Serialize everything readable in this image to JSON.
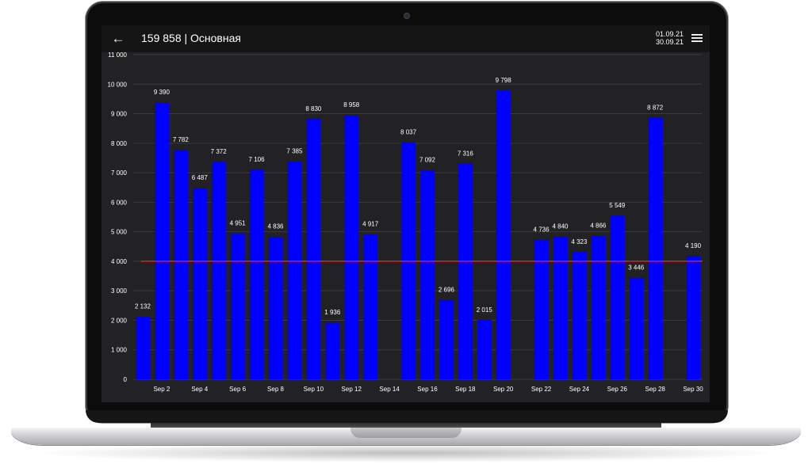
{
  "app": {
    "title": "159 858 | Основная",
    "date_from": "01.09.21",
    "date_to": "30.09.21",
    "icons": {
      "back": "arrow-left-icon",
      "menu": "hamburger-menu-icon"
    }
  },
  "chart_data": {
    "type": "bar",
    "x": [
      1,
      2,
      3,
      4,
      5,
      6,
      7,
      8,
      9,
      10,
      11,
      12,
      13,
      14,
      15,
      16,
      17,
      18,
      19,
      20,
      21,
      22,
      23,
      24,
      25,
      26,
      27,
      28,
      29,
      30
    ],
    "values": [
      2132,
      9390,
      7782,
      6487,
      7372,
      4951,
      7106,
      4836,
      7385,
      8830,
      1936,
      8958,
      4917,
      null,
      8037,
      7092,
      2696,
      7316,
      2015,
      9798,
      null,
      4736,
      4840,
      4323,
      4866,
      5549,
      3446,
      8872,
      null,
      4190
    ],
    "value_labels": [
      "2 132",
      "9 390",
      "7 782",
      "6 487",
      "7 372",
      "4 951",
      "7 106",
      "4 836",
      "7 385",
      "8 830",
      "1 936",
      "8 958",
      "4 917",
      "",
      "8 037",
      "7 092",
      "2 696",
      "7 316",
      "2 015",
      "9 798",
      "",
      "4 736",
      "4 840",
      "4 323",
      "4 866",
      "5 549",
      "3 446",
      "8 872",
      "",
      "4 190"
    ],
    "xticks": [
      {
        "x": 2,
        "label": "Sep 2"
      },
      {
        "x": 4,
        "label": "Sep 4"
      },
      {
        "x": 6,
        "label": "Sep 6"
      },
      {
        "x": 8,
        "label": "Sep 8"
      },
      {
        "x": 10,
        "label": "Sep 10"
      },
      {
        "x": 12,
        "label": "Sep 12"
      },
      {
        "x": 14,
        "label": "Sep 14"
      },
      {
        "x": 16,
        "label": "Sep 16"
      },
      {
        "x": 18,
        "label": "Sep 18"
      },
      {
        "x": 20,
        "label": "Sep 20"
      },
      {
        "x": 22,
        "label": "Sep 22"
      },
      {
        "x": 24,
        "label": "Sep 24"
      },
      {
        "x": 26,
        "label": "Sep 26"
      },
      {
        "x": 28,
        "label": "Sep 28"
      },
      {
        "x": 30,
        "label": "Sep 30"
      }
    ],
    "yticks": [
      {
        "value": 0,
        "label": "0"
      },
      {
        "value": 1000,
        "label": "1 000"
      },
      {
        "value": 2000,
        "label": "2 000"
      },
      {
        "value": 3000,
        "label": "3 000"
      },
      {
        "value": 4000,
        "label": "4 000"
      },
      {
        "value": 5000,
        "label": "5 000"
      },
      {
        "value": 6000,
        "label": "6 000"
      },
      {
        "value": 7000,
        "label": "7 000"
      },
      {
        "value": 8000,
        "label": "8 000"
      },
      {
        "value": 9000,
        "label": "9 000"
      },
      {
        "value": 10000,
        "label": "10 000"
      },
      {
        "value": 11000,
        "label": "11 000"
      }
    ],
    "ylim": [
      0,
      11000
    ],
    "reference_line": 4000,
    "grid": true,
    "colors": {
      "bar": "#0000ff",
      "reference_line": "#ff2020",
      "text": "#ffffff",
      "grid": "#3a3a3c"
    }
  }
}
